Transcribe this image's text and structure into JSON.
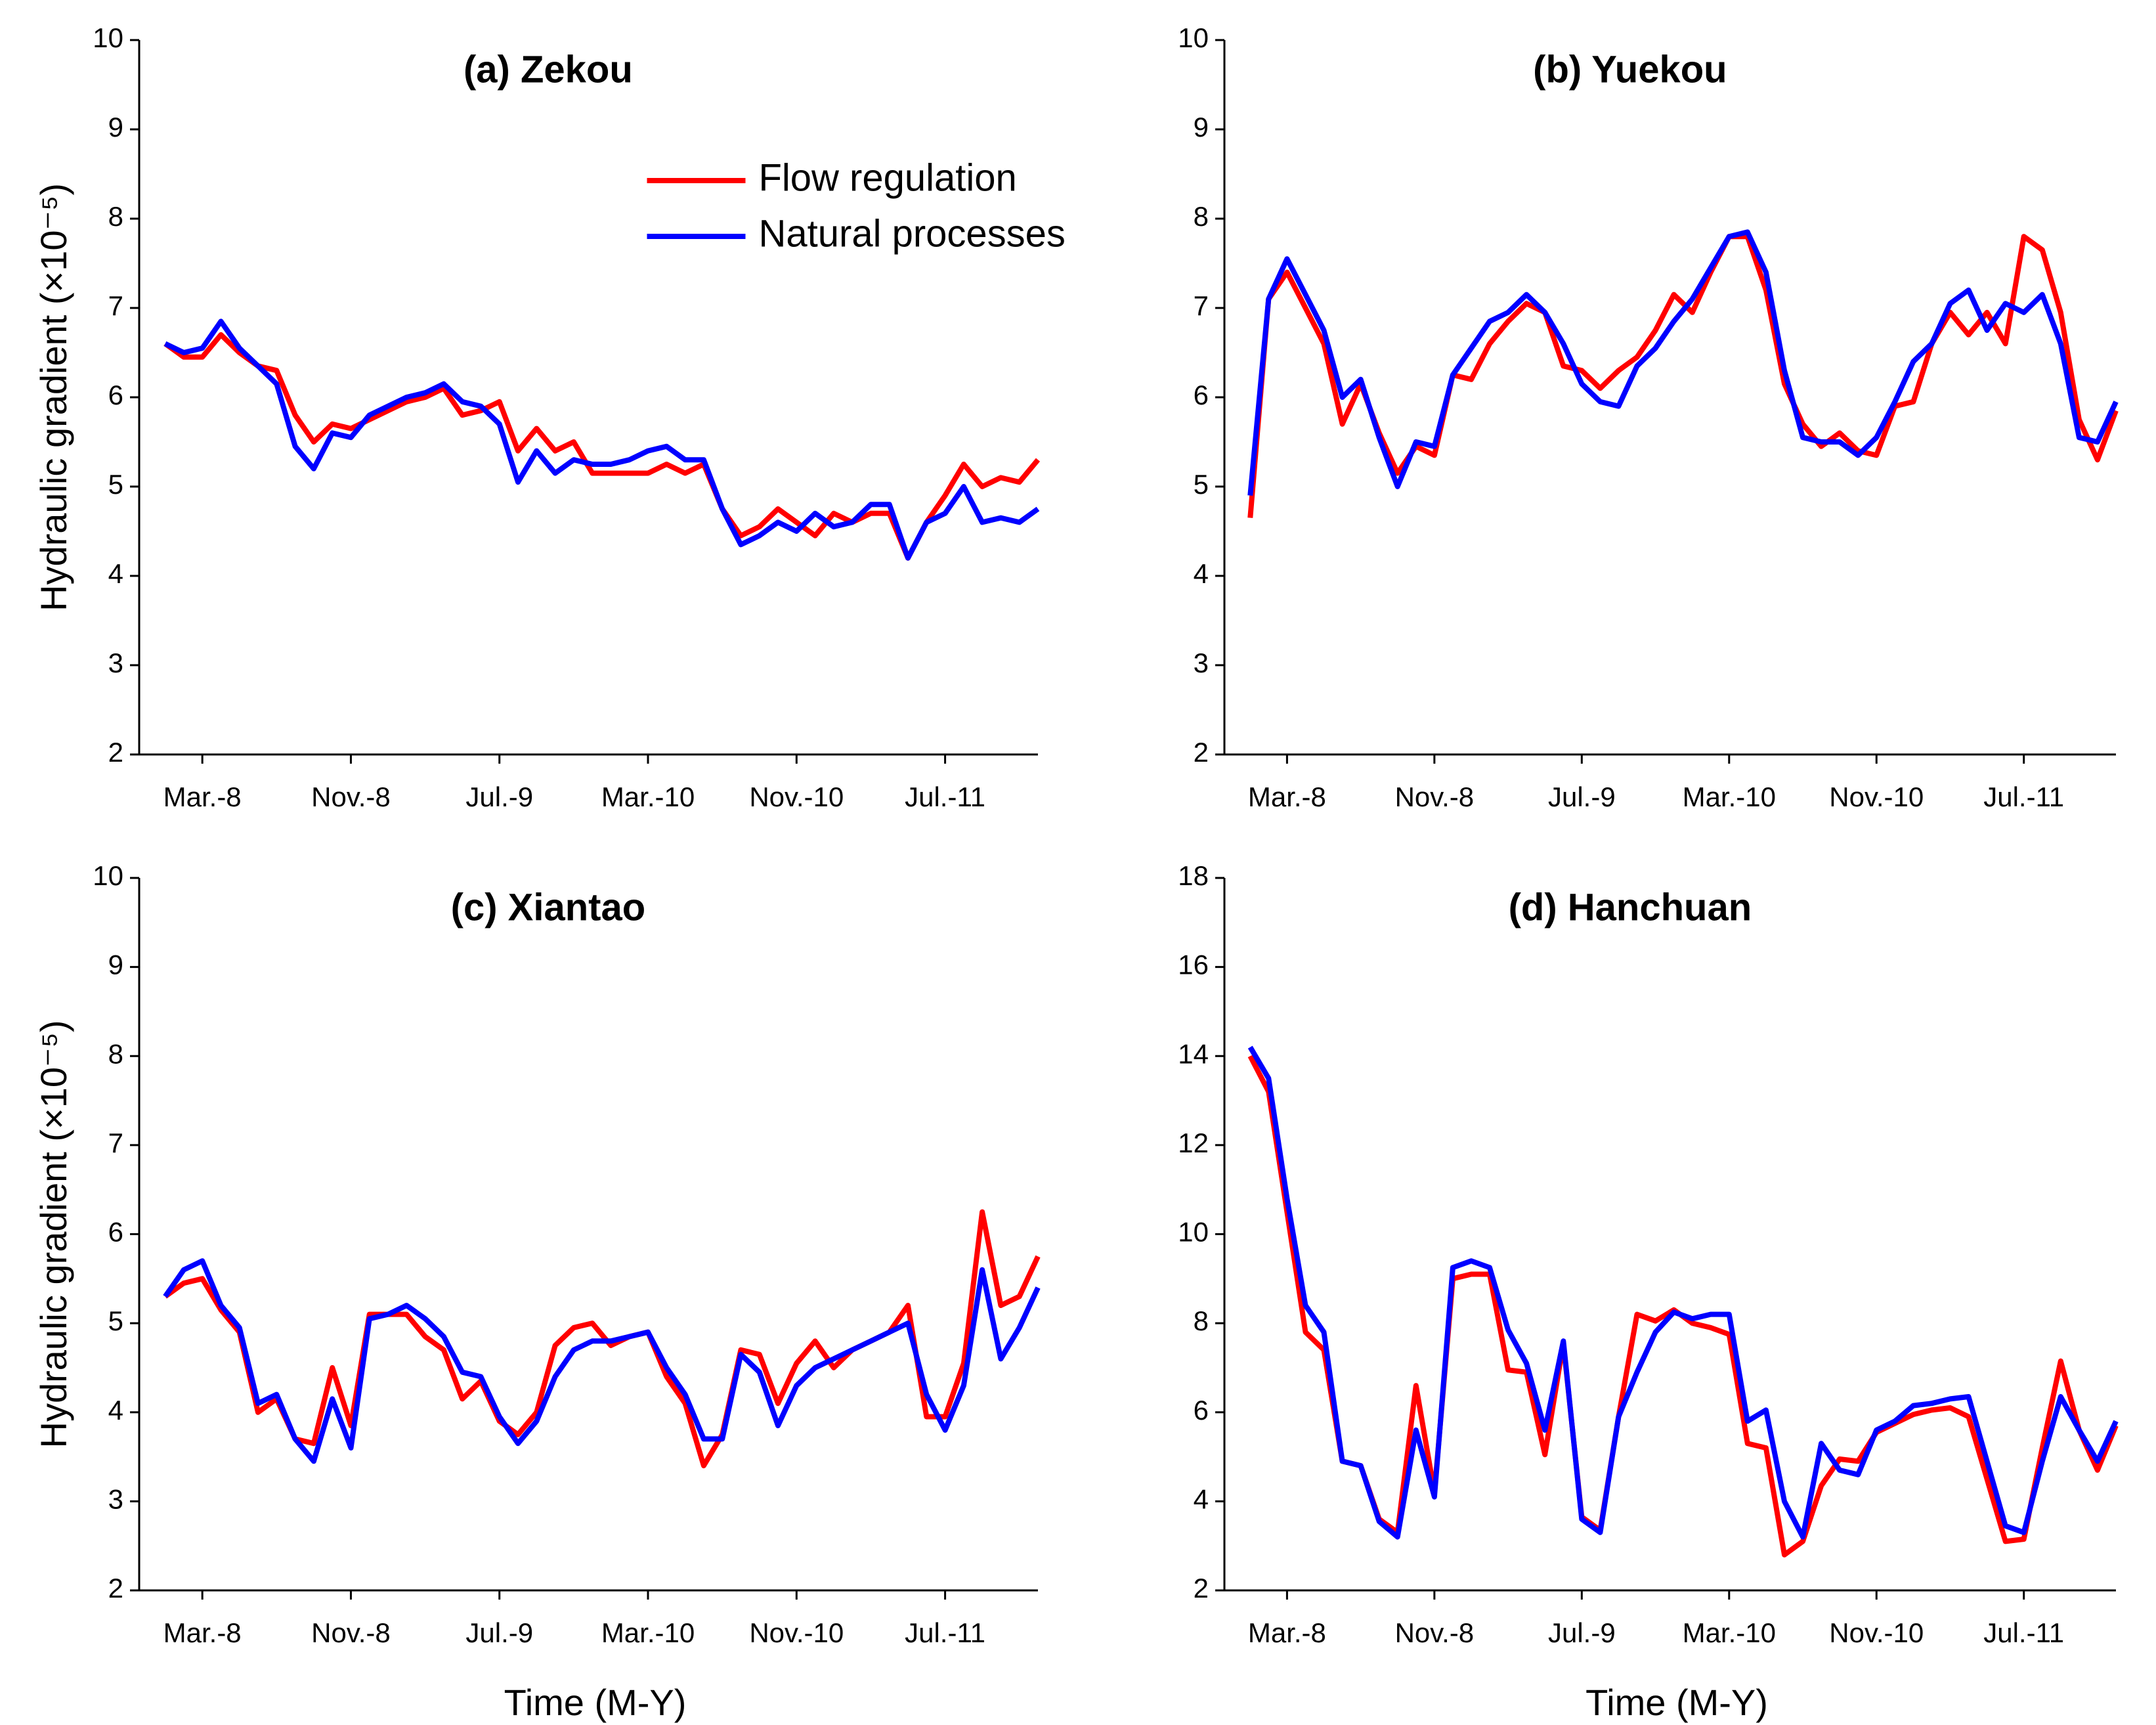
{
  "chart_data": [
    {
      "type": "line",
      "title": "(a) Zekou",
      "ylabel": "Hydraulic gradient (×10⁻⁵)",
      "legend": "upper right",
      "categories": [
        null,
        null,
        "Mar.-8",
        null,
        null,
        null,
        null,
        null,
        null,
        null,
        "Nov.-8",
        null,
        null,
        null,
        null,
        null,
        null,
        null,
        "Jul.-9",
        null,
        null,
        null,
        null,
        null,
        null,
        null,
        "Mar.-10",
        null,
        null,
        null,
        null,
        null,
        null,
        null,
        "Nov.-10",
        null,
        null,
        null,
        null,
        null,
        null,
        null,
        "Jul.-11",
        null,
        null,
        null,
        null,
        null
      ],
      "ylim": [
        2,
        10
      ],
      "yticks": [
        2,
        3,
        4,
        5,
        6,
        7,
        8,
        9,
        10
      ],
      "series": [
        {
          "name": "Flow regulation",
          "color": "#ff0000",
          "values": [
            6.6,
            6.45,
            6.45,
            6.7,
            6.5,
            6.35,
            6.3,
            5.8,
            5.5,
            5.7,
            5.65,
            5.75,
            5.85,
            5.95,
            6.0,
            6.1,
            5.8,
            5.85,
            5.95,
            5.4,
            5.65,
            5.4,
            5.5,
            5.15,
            5.15,
            5.15,
            5.15,
            5.25,
            5.15,
            5.25,
            4.75,
            4.45,
            4.55,
            4.75,
            4.6,
            4.45,
            4.7,
            4.6,
            4.7,
            4.7,
            4.2,
            4.6,
            4.9,
            5.25,
            5.0,
            5.1,
            5.05,
            5.3
          ]
        },
        {
          "name": "Natural processes",
          "color": "#0000ff",
          "values": [
            6.6,
            6.5,
            6.55,
            6.85,
            6.55,
            6.35,
            6.15,
            5.45,
            5.2,
            5.6,
            5.55,
            5.8,
            5.9,
            6.0,
            6.05,
            6.15,
            5.95,
            5.9,
            5.7,
            5.05,
            5.4,
            5.15,
            5.3,
            5.25,
            5.25,
            5.3,
            5.4,
            5.45,
            5.3,
            5.3,
            4.75,
            4.35,
            4.45,
            4.6,
            4.5,
            4.7,
            4.55,
            4.6,
            4.8,
            4.8,
            4.2,
            4.6,
            4.7,
            5.0,
            4.6,
            4.65,
            4.6,
            4.75
          ]
        }
      ]
    },
    {
      "type": "line",
      "title": "(b) Yuekou",
      "categories": [
        null,
        null,
        "Mar.-8",
        null,
        null,
        null,
        null,
        null,
        null,
        null,
        "Nov.-8",
        null,
        null,
        null,
        null,
        null,
        null,
        null,
        "Jul.-9",
        null,
        null,
        null,
        null,
        null,
        null,
        null,
        "Mar.-10",
        null,
        null,
        null,
        null,
        null,
        null,
        null,
        "Nov.-10",
        null,
        null,
        null,
        null,
        null,
        null,
        null,
        "Jul.-11",
        null,
        null,
        null,
        null,
        null
      ],
      "ylim": [
        2,
        10
      ],
      "yticks": [
        2,
        3,
        4,
        5,
        6,
        7,
        8,
        9,
        10
      ],
      "series": [
        {
          "color": "#ff0000",
          "values": [
            4.65,
            7.1,
            7.4,
            7.0,
            6.6,
            5.7,
            6.15,
            5.6,
            5.15,
            5.45,
            5.35,
            6.25,
            6.2,
            6.6,
            6.85,
            7.05,
            6.95,
            6.35,
            6.3,
            6.1,
            6.3,
            6.45,
            6.75,
            7.15,
            6.95,
            7.4,
            7.8,
            7.8,
            7.2,
            6.15,
            5.7,
            5.45,
            5.6,
            5.4,
            5.35,
            5.9,
            5.95,
            6.6,
            6.95,
            6.7,
            6.95,
            6.6,
            7.8,
            7.65,
            6.95,
            5.75,
            5.3,
            5.85
          ]
        },
        {
          "color": "#0000ff",
          "values": [
            4.9,
            7.1,
            7.55,
            7.15,
            6.75,
            6.0,
            6.2,
            5.55,
            5.0,
            5.5,
            5.45,
            6.25,
            6.55,
            6.85,
            6.95,
            7.15,
            6.95,
            6.6,
            6.15,
            5.95,
            5.9,
            6.35,
            6.55,
            6.85,
            7.1,
            7.45,
            7.8,
            7.85,
            7.4,
            6.3,
            5.55,
            5.5,
            5.5,
            5.35,
            5.55,
            5.95,
            6.4,
            6.6,
            7.05,
            7.2,
            6.75,
            7.05,
            6.95,
            7.15,
            6.6,
            5.55,
            5.5,
            5.95
          ]
        }
      ]
    },
    {
      "type": "line",
      "title": "(c) Xiantao",
      "ylabel": "Hydraulic gradient (×10⁻⁵)",
      "xlabel": "Time (M-Y)",
      "categories": [
        null,
        null,
        "Mar.-8",
        null,
        null,
        null,
        null,
        null,
        null,
        null,
        "Nov.-8",
        null,
        null,
        null,
        null,
        null,
        null,
        null,
        "Jul.-9",
        null,
        null,
        null,
        null,
        null,
        null,
        null,
        "Mar.-10",
        null,
        null,
        null,
        null,
        null,
        null,
        null,
        "Nov.-10",
        null,
        null,
        null,
        null,
        null,
        null,
        null,
        "Jul.-11",
        null,
        null,
        null,
        null,
        null
      ],
      "ylim": [
        2,
        10
      ],
      "yticks": [
        2,
        3,
        4,
        5,
        6,
        7,
        8,
        9,
        10
      ],
      "series": [
        {
          "color": "#ff0000",
          "values": [
            5.3,
            5.45,
            5.5,
            5.15,
            4.9,
            4.0,
            4.15,
            3.7,
            3.65,
            4.5,
            3.85,
            5.1,
            5.1,
            5.1,
            4.85,
            4.7,
            4.15,
            4.35,
            3.9,
            3.75,
            4.0,
            4.75,
            4.95,
            5.0,
            4.75,
            4.85,
            4.9,
            4.4,
            4.1,
            3.4,
            3.75,
            4.7,
            4.65,
            4.1,
            4.55,
            4.8,
            4.5,
            4.7,
            4.8,
            4.9,
            5.2,
            3.95,
            3.95,
            4.55,
            6.25,
            5.2,
            5.3,
            5.75
          ]
        },
        {
          "color": "#0000ff",
          "values": [
            5.3,
            5.6,
            5.7,
            5.2,
            4.95,
            4.1,
            4.2,
            3.7,
            3.45,
            4.15,
            3.6,
            5.05,
            5.1,
            5.2,
            5.05,
            4.85,
            4.45,
            4.4,
            3.95,
            3.65,
            3.9,
            4.4,
            4.7,
            4.8,
            4.8,
            4.85,
            4.9,
            4.5,
            4.2,
            3.7,
            3.7,
            4.65,
            4.45,
            3.85,
            4.3,
            4.5,
            4.6,
            4.7,
            4.8,
            4.9,
            5.0,
            4.2,
            3.8,
            4.3,
            5.6,
            4.6,
            4.95,
            5.4
          ]
        }
      ]
    },
    {
      "type": "line",
      "title": "(d) Hanchuan",
      "xlabel": "Time (M-Y)",
      "categories": [
        null,
        null,
        "Mar.-8",
        null,
        null,
        null,
        null,
        null,
        null,
        null,
        "Nov.-8",
        null,
        null,
        null,
        null,
        null,
        null,
        null,
        "Jul.-9",
        null,
        null,
        null,
        null,
        null,
        null,
        null,
        "Mar.-10",
        null,
        null,
        null,
        null,
        null,
        null,
        null,
        "Nov.-10",
        null,
        null,
        null,
        null,
        null,
        null,
        null,
        "Jul.-11",
        null,
        null,
        null,
        null,
        null
      ],
      "ylim": [
        2,
        18
      ],
      "yticks": [
        2,
        4,
        6,
        8,
        10,
        12,
        14,
        16,
        18
      ],
      "series": [
        {
          "color": "#ff0000",
          "values": [
            14.0,
            13.2,
            10.5,
            7.8,
            7.4,
            4.9,
            4.8,
            3.6,
            3.3,
            6.6,
            4.2,
            9.0,
            9.1,
            9.1,
            6.95,
            6.9,
            5.05,
            7.55,
            3.65,
            3.35,
            5.9,
            8.2,
            8.05,
            8.3,
            8.0,
            7.9,
            7.75,
            5.3,
            5.2,
            2.8,
            3.1,
            4.35,
            4.95,
            4.9,
            5.55,
            5.75,
            5.95,
            6.05,
            6.1,
            5.9,
            4.5,
            3.1,
            3.15,
            5.2,
            7.15,
            5.6,
            4.7,
            5.7
          ]
        },
        {
          "color": "#0000ff",
          "values": [
            14.2,
            13.5,
            10.8,
            8.4,
            7.8,
            4.9,
            4.8,
            3.55,
            3.2,
            5.6,
            4.1,
            9.25,
            9.4,
            9.25,
            7.85,
            7.1,
            5.6,
            7.6,
            3.6,
            3.3,
            5.9,
            6.9,
            7.8,
            8.25,
            8.1,
            8.2,
            8.2,
            5.8,
            6.05,
            4.0,
            3.2,
            5.3,
            4.7,
            4.6,
            5.6,
            5.8,
            6.15,
            6.2,
            6.3,
            6.35,
            4.9,
            3.45,
            3.3,
            4.9,
            6.35,
            5.6,
            4.9,
            5.8
          ]
        }
      ]
    }
  ]
}
